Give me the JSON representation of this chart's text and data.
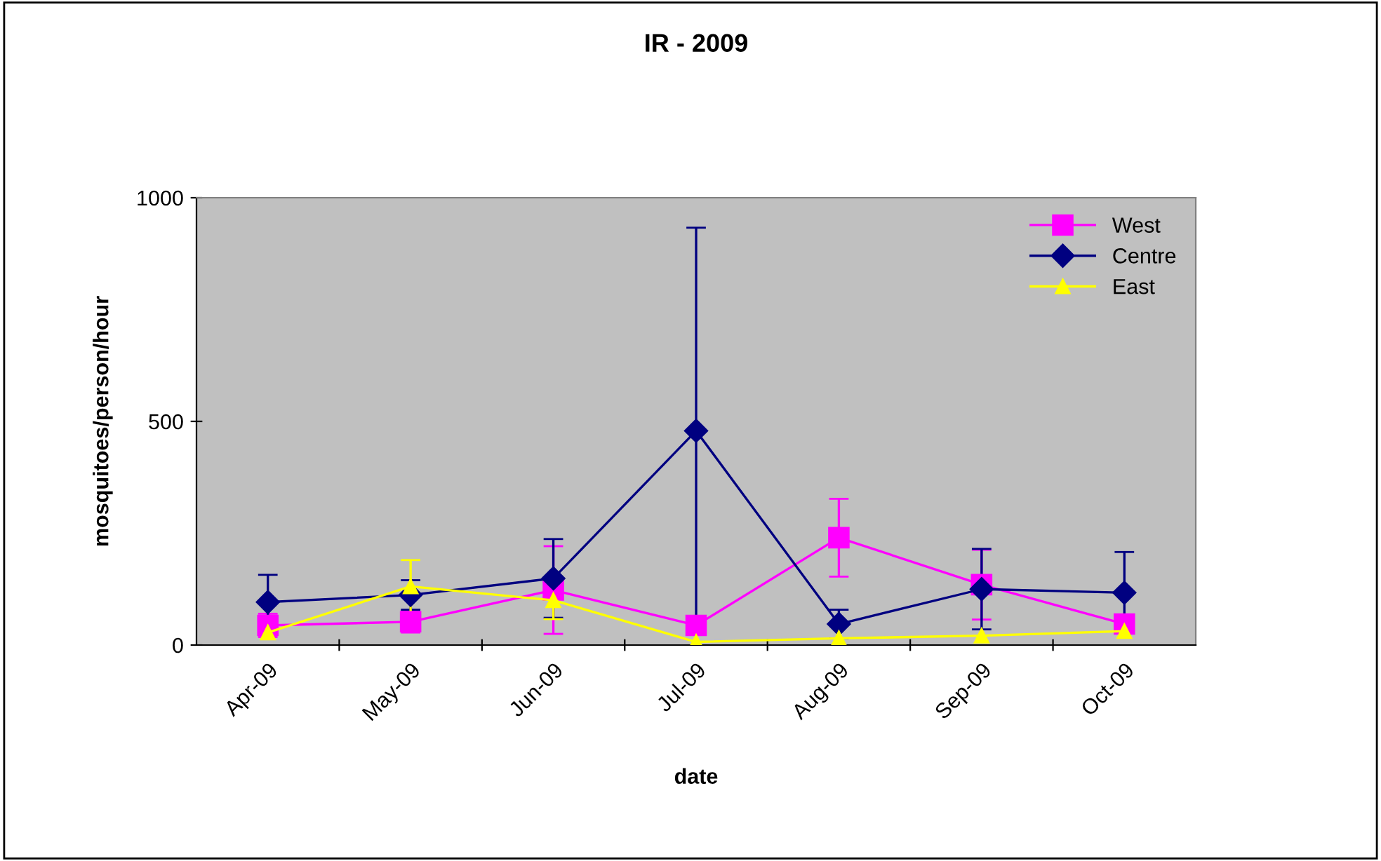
{
  "chart_data": {
    "type": "line",
    "title": "IR - 2009",
    "xlabel": "date",
    "ylabel": "mosquitoes/person/hour",
    "categories": [
      "Apr-09",
      "May-09",
      "Jun-09",
      "Jul-09",
      "Aug-09",
      "Sep-09",
      "Oct-09"
    ],
    "series": [
      {
        "name": "West",
        "color": "#ff00ff",
        "marker": "square",
        "values": [
          44,
          52,
          123,
          44,
          240,
          135,
          47
        ],
        "errors": [
          26,
          24,
          98,
          null,
          87,
          78,
          null
        ]
      },
      {
        "name": "Centre",
        "color": "#000080",
        "marker": "diamond",
        "values": [
          96,
          112,
          149,
          479,
          47,
          125,
          117
        ],
        "errors": [
          61,
          33,
          88,
          454,
          32,
          90,
          91
        ]
      },
      {
        "name": "East",
        "color": "#ffff00",
        "marker": "triangle",
        "values": [
          28,
          131,
          100,
          7,
          15,
          21,
          31
        ],
        "errors": [
          null,
          59,
          42,
          null,
          null,
          null,
          null
        ]
      }
    ],
    "ylim": [
      0,
      1000
    ],
    "yticks": [
      0,
      500,
      1000
    ],
    "grid": false,
    "legend": "top right"
  }
}
